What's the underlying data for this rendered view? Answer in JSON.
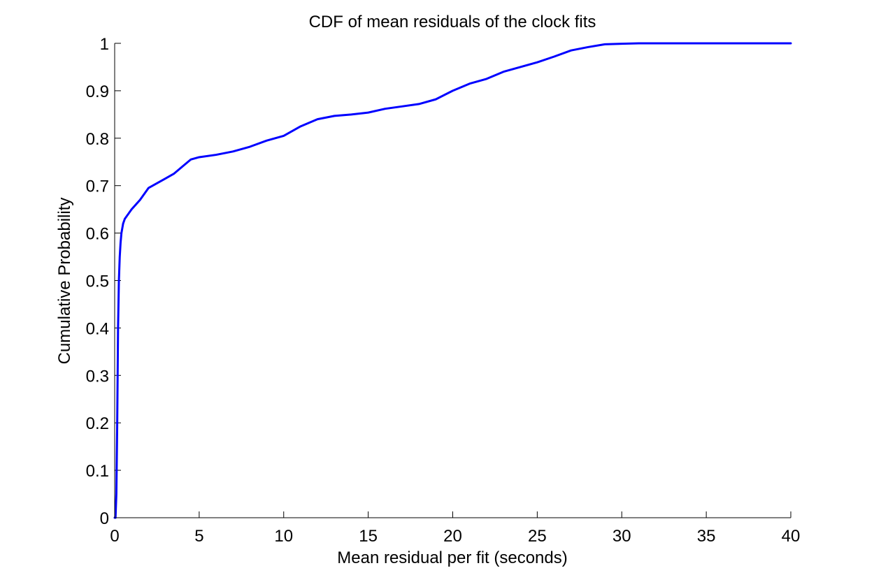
{
  "chart_data": {
    "type": "line",
    "title": "CDF of mean residuals of the clock fits",
    "xlabel": "Mean residual per fit (seconds)",
    "ylabel": "Cumulative Probability",
    "xlim": [
      0,
      40
    ],
    "ylim": [
      0,
      1
    ],
    "xticks": [
      "0",
      "5",
      "10",
      "15",
      "20",
      "25",
      "30",
      "35",
      "40"
    ],
    "yticks": [
      "0",
      "0.1",
      "0.2",
      "0.3",
      "0.4",
      "0.5",
      "0.6",
      "0.7",
      "0.8",
      "0.9",
      "1"
    ],
    "grid": false,
    "colors": {
      "line": "#0000ff",
      "axes": "#000000",
      "background": "#ffffff"
    },
    "series": [
      {
        "x": [
          0.0,
          0.05,
          0.1,
          0.15,
          0.2,
          0.25,
          0.3,
          0.35,
          0.4,
          0.5,
          0.6,
          0.8,
          1.0,
          1.5,
          2.0,
          2.5,
          3.0,
          3.5,
          4.0,
          4.5,
          5.0,
          6.0,
          7.0,
          8.0,
          9.0,
          10.0,
          11.0,
          12.0,
          13.0,
          14.0,
          15.0,
          16.0,
          17.0,
          18.0,
          19.0,
          20.0,
          21.0,
          22.0,
          23.0,
          24.0,
          25.0,
          26.0,
          27.0,
          28.0,
          29.0,
          30.0,
          31.0,
          32.0,
          35.0,
          40.0
        ],
        "y": [
          0.0,
          0.0,
          0.05,
          0.2,
          0.4,
          0.5,
          0.55,
          0.58,
          0.6,
          0.62,
          0.63,
          0.64,
          0.65,
          0.67,
          0.695,
          0.705,
          0.715,
          0.725,
          0.74,
          0.755,
          0.76,
          0.765,
          0.772,
          0.782,
          0.795,
          0.805,
          0.825,
          0.84,
          0.847,
          0.85,
          0.854,
          0.862,
          0.867,
          0.872,
          0.882,
          0.9,
          0.915,
          0.925,
          0.94,
          0.95,
          0.96,
          0.972,
          0.985,
          0.992,
          0.998,
          0.999,
          1.0,
          1.0,
          1.0,
          1.0
        ]
      }
    ]
  }
}
